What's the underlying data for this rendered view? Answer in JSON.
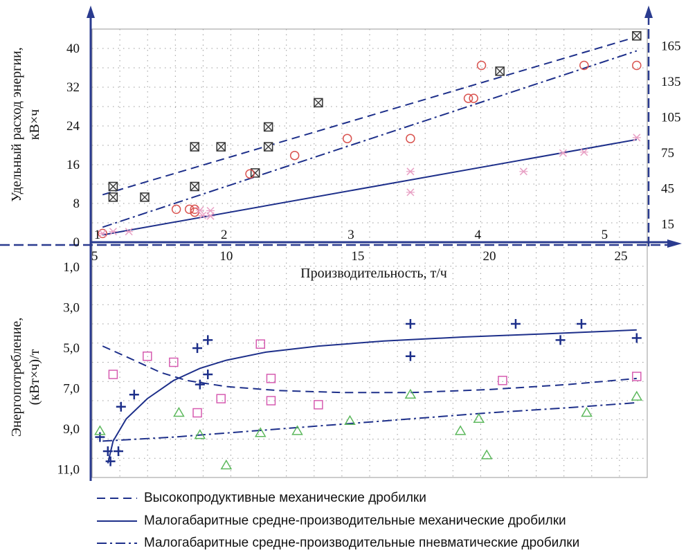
{
  "chart_data": {
    "type": "scatter",
    "colors": {
      "axis": "#2a3b8f",
      "grid": "#9a9a9a",
      "red": "#d9534f",
      "pink": "#e8a0c4",
      "magenta": "#d65bb0",
      "green": "#5cb85c",
      "navy": "#1d2f8a",
      "dark": "#333333"
    },
    "top": {
      "ylabel_line1": "Удельный расход энергии,",
      "ylabel_line2": "кВ×ч",
      "left_ticks": [
        "0",
        "8",
        "16",
        "24",
        "32",
        "40"
      ],
      "left_tick_values": [
        0,
        8,
        16,
        24,
        32,
        40
      ],
      "right_ticks": [
        "15",
        "45",
        "75",
        "105",
        "135",
        "165"
      ],
      "right_tick_values": [
        15,
        45,
        75,
        105,
        135,
        165
      ],
      "secondary_x_ticks": [
        "1",
        "2",
        "3",
        "4",
        "5"
      ],
      "secondary_x_values": [
        1,
        2,
        3,
        4,
        5
      ],
      "ylim": [
        0,
        44
      ],
      "series": [
        {
          "marker": "boxed-x",
          "points": [
            [
              5.7,
              9.3
            ],
            [
              5.7,
              11.5
            ],
            [
              6.9,
              9.3
            ],
            [
              8.8,
              19.7
            ],
            [
              8.8,
              11.5
            ],
            [
              9.8,
              19.7
            ],
            [
              11.6,
              19.7
            ],
            [
              11.6,
              23.8
            ],
            [
              11.1,
              14.3
            ],
            [
              13.5,
              28.8
            ],
            [
              20.4,
              35.3
            ],
            [
              25.6,
              42.6
            ]
          ]
        },
        {
          "marker": "circle",
          "points": [
            [
              5.3,
              1.8
            ],
            [
              8.1,
              6.8
            ],
            [
              8.6,
              6.8
            ],
            [
              8.8,
              6.8
            ],
            [
              8.8,
              6.2
            ],
            [
              10.9,
              14.1
            ],
            [
              12.6,
              17.9
            ],
            [
              14.6,
              21.4
            ],
            [
              17.0,
              21.4
            ],
            [
              19.2,
              29.7
            ],
            [
              19.7,
              36.5
            ],
            [
              19.4,
              29.7
            ],
            [
              23.6,
              36.5
            ],
            [
              25.6,
              36.5
            ]
          ]
        },
        {
          "marker": "asterisk",
          "points": [
            [
              5.3,
              1.8
            ],
            [
              5.7,
              2.2
            ],
            [
              6.3,
              2.2
            ],
            [
              9.0,
              6.6
            ],
            [
              9.1,
              5.5
            ],
            [
              9.4,
              6.5
            ],
            [
              9.4,
              5.4
            ],
            [
              17.0,
              14.6
            ],
            [
              17.0,
              10.3
            ],
            [
              21.3,
              14.6
            ],
            [
              22.8,
              18.4
            ],
            [
              23.6,
              18.6
            ],
            [
              25.6,
              21.6
            ]
          ]
        }
      ],
      "lines": [
        {
          "style": "dashed",
          "from": [
            5.3,
            9.8
          ],
          "to": [
            25.6,
            42.4
          ]
        },
        {
          "style": "dashdot",
          "from": [
            5.3,
            3.1
          ],
          "to": [
            25.6,
            39.5
          ]
        },
        {
          "style": "solid",
          "from": [
            5.3,
            1.5
          ],
          "to": [
            25.6,
            21.2
          ]
        }
      ]
    },
    "bottom": {
      "ylabel_line1": "Энергопотребление,",
      "ylabel_line2": "(кВт×ч)/т",
      "y_ticks": [
        "1,0",
        "3,0",
        "5,0",
        "7,0",
        "9,0",
        "11,0"
      ],
      "y_tick_values": [
        1,
        3,
        5,
        7,
        9,
        11
      ],
      "ylim": [
        11.4,
        0
      ],
      "series": [
        {
          "marker": "plus",
          "points": [
            [
              5.2,
              9.4
            ],
            [
              5.5,
              10.1
            ],
            [
              5.9,
              10.1
            ],
            [
              5.6,
              10.6
            ],
            [
              6.0,
              7.9
            ],
            [
              6.5,
              7.3
            ],
            [
              8.9,
              5.0
            ],
            [
              9.3,
              4.6
            ],
            [
              9.0,
              6.8
            ],
            [
              9.3,
              6.3
            ],
            [
              17.0,
              3.8
            ],
            [
              17.0,
              5.4
            ],
            [
              21.0,
              3.8
            ],
            [
              22.7,
              4.6
            ],
            [
              23.5,
              3.8
            ],
            [
              25.6,
              4.5
            ]
          ]
        },
        {
          "marker": "square",
          "points": [
            [
              5.7,
              6.3
            ],
            [
              7.0,
              5.4
            ],
            [
              8.0,
              5.7
            ],
            [
              8.9,
              8.2
            ],
            [
              9.8,
              7.5
            ],
            [
              11.3,
              4.8
            ],
            [
              11.7,
              6.5
            ],
            [
              11.7,
              7.6
            ],
            [
              13.5,
              7.8
            ],
            [
              20.5,
              6.6
            ],
            [
              25.6,
              6.4
            ]
          ]
        },
        {
          "marker": "triangle",
          "points": [
            [
              5.2,
              9.1
            ],
            [
              8.2,
              8.2
            ],
            [
              9.0,
              9.3
            ],
            [
              10.0,
              10.8
            ],
            [
              11.3,
              9.2
            ],
            [
              12.7,
              9.1
            ],
            [
              14.7,
              8.6
            ],
            [
              17.0,
              7.3
            ],
            [
              18.9,
              9.1
            ],
            [
              19.6,
              8.5
            ],
            [
              19.9,
              10.3
            ],
            [
              23.7,
              8.2
            ],
            [
              25.6,
              7.4
            ]
          ]
        }
      ]
    },
    "x_ticks": [
      "5",
      "10",
      "15",
      "20",
      "25"
    ],
    "x_tick_values": [
      5,
      10,
      15,
      20,
      25
    ],
    "xlim": [
      4.9,
      26.0
    ],
    "xlabel": "Производительность, т/ч",
    "legend": [
      {
        "style": "dashed",
        "label": "Высокопродуктивные механические дробилки"
      },
      {
        "style": "solid",
        "label": "Малогабаритные средне-производительные механические дробилки"
      },
      {
        "style": "dashdot",
        "label": "Малогабаритные средне-производительные пневматические дробилки"
      }
    ]
  }
}
